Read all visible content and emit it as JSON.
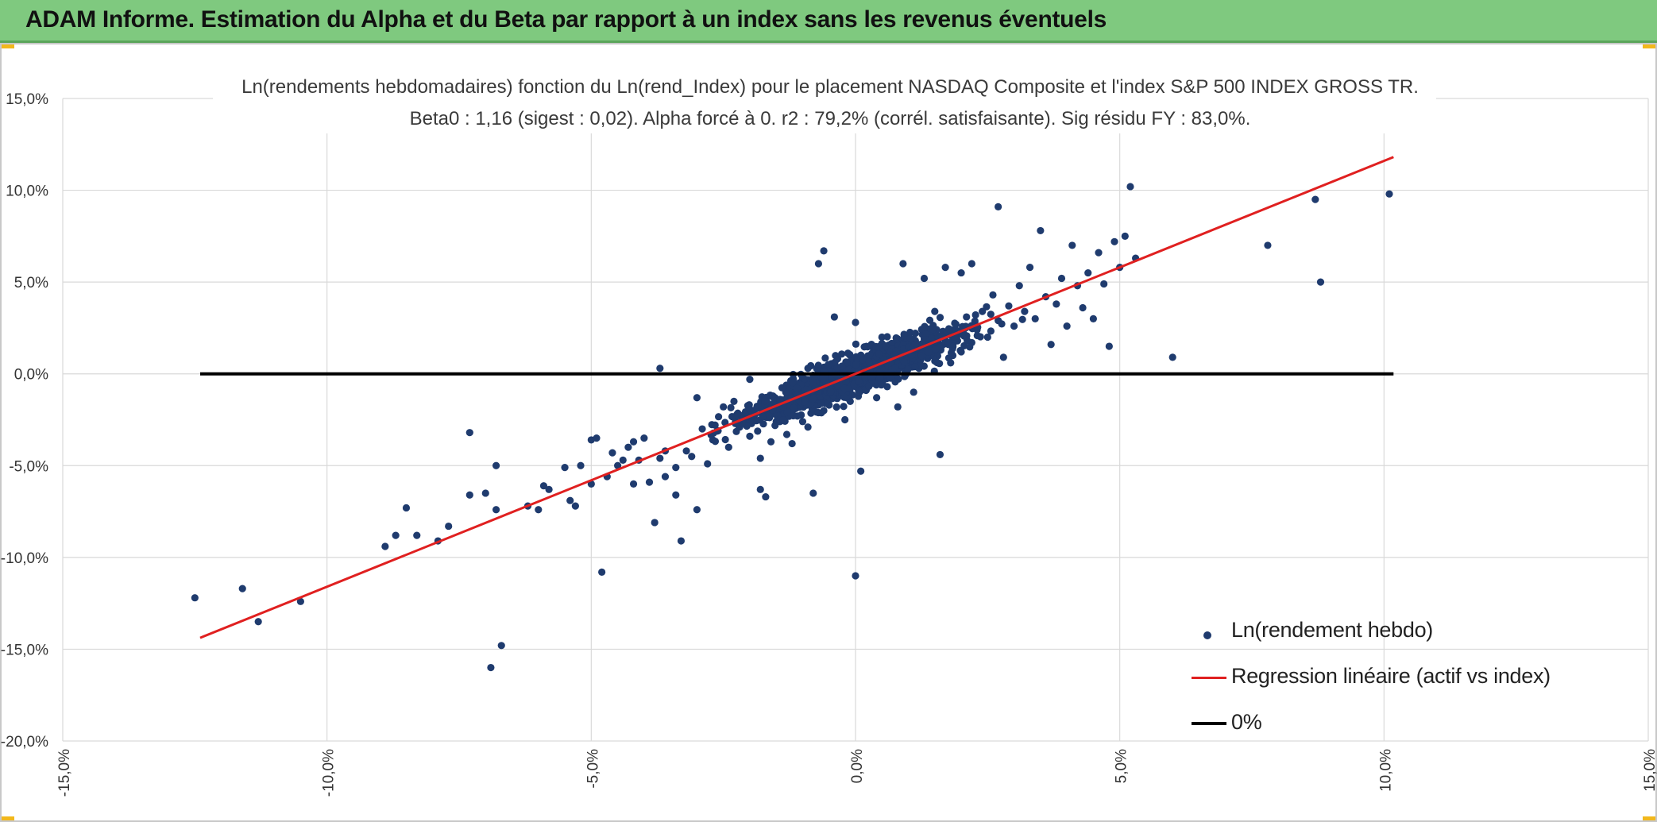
{
  "header": {
    "title": "ADAM Informe. Estimation du Alpha et du Beta par rapport à un index sans les revenus éventuels"
  },
  "colors": {
    "header_bg": "#7fc97f",
    "points": "#1f3b6e",
    "regression": "#e02020",
    "zero_line": "#000000",
    "grid": "#d9d9d9"
  },
  "chart_data": {
    "type": "scatter",
    "title_line1": "Ln(rendements hebdomadaires) fonction du Ln(rend_Index) pour le placement NASDAQ Composite et l'index S&P 500 INDEX GROSS TR.",
    "title_line2": "Beta0 : 1,16 (sigest : 0,02). Alpha forcé à 0. r2 : 79,2% (corrél. satisfaisante). Sig résidu FY : 83,0%.",
    "xlim": [
      -0.15,
      0.15
    ],
    "ylim": [
      -0.2,
      0.15
    ],
    "x_ticks": [
      -0.15,
      -0.1,
      -0.05,
      0.0,
      0.05,
      0.1,
      0.15
    ],
    "x_tick_labels": [
      "-15,0%",
      "-10,0%",
      "-5,0%",
      "0,0%",
      "5,0%",
      "10,0%",
      "15,0%"
    ],
    "y_ticks": [
      -0.2,
      -0.15,
      -0.1,
      -0.05,
      0.0,
      0.05,
      0.1,
      0.15
    ],
    "y_tick_labels": [
      "-20,0%",
      "-15,0%",
      "-10,0%",
      "-5,0%",
      "0,0%",
      "5,0%",
      "10,0%",
      "15,0%"
    ],
    "grid": true,
    "legend_position": "bottom-right",
    "beta": 1.16,
    "series": [
      {
        "name": "Ln(rendement hebdo)",
        "kind": "scatter",
        "points": [
          [
            -0.125,
            -0.122
          ],
          [
            -0.116,
            -0.117
          ],
          [
            -0.113,
            -0.135
          ],
          [
            -0.105,
            -0.124
          ],
          [
            -0.089,
            -0.094
          ],
          [
            -0.087,
            -0.088
          ],
          [
            -0.085,
            -0.073
          ],
          [
            -0.083,
            -0.088
          ],
          [
            -0.079,
            -0.091
          ],
          [
            -0.077,
            -0.083
          ],
          [
            -0.073,
            -0.066
          ],
          [
            -0.073,
            -0.032
          ],
          [
            -0.07,
            -0.065
          ],
          [
            -0.068,
            -0.074
          ],
          [
            -0.068,
            -0.05
          ],
          [
            -0.069,
            -0.16
          ],
          [
            -0.067,
            -0.148
          ],
          [
            -0.062,
            -0.072
          ],
          [
            -0.06,
            -0.074
          ],
          [
            -0.059,
            -0.061
          ],
          [
            -0.058,
            -0.063
          ],
          [
            -0.055,
            -0.051
          ],
          [
            -0.054,
            -0.069
          ],
          [
            -0.053,
            -0.072
          ],
          [
            -0.052,
            -0.05
          ],
          [
            -0.05,
            -0.06
          ],
          [
            -0.05,
            -0.036
          ],
          [
            -0.049,
            -0.035
          ],
          [
            -0.048,
            -0.108
          ],
          [
            -0.047,
            -0.056
          ],
          [
            -0.046,
            -0.043
          ],
          [
            -0.045,
            -0.05
          ],
          [
            -0.044,
            -0.047
          ],
          [
            -0.043,
            -0.04
          ],
          [
            -0.042,
            -0.06
          ],
          [
            -0.042,
            -0.037
          ],
          [
            -0.041,
            -0.047
          ],
          [
            -0.04,
            -0.035
          ],
          [
            -0.039,
            -0.059
          ],
          [
            -0.038,
            -0.081
          ],
          [
            -0.037,
            -0.046
          ],
          [
            -0.037,
            0.003
          ],
          [
            -0.036,
            -0.042
          ],
          [
            -0.036,
            -0.056
          ],
          [
            -0.034,
            -0.051
          ],
          [
            -0.034,
            -0.066
          ],
          [
            -0.033,
            -0.091
          ],
          [
            -0.032,
            -0.042
          ],
          [
            -0.031,
            -0.045
          ],
          [
            -0.03,
            -0.074
          ],
          [
            -0.03,
            -0.013
          ],
          [
            -0.029,
            -0.03
          ],
          [
            -0.028,
            -0.049
          ],
          [
            -0.027,
            -0.036
          ],
          [
            -0.026,
            -0.031
          ],
          [
            -0.025,
            -0.018
          ],
          [
            -0.024,
            -0.04
          ],
          [
            -0.023,
            -0.015
          ],
          [
            -0.022,
            -0.029
          ],
          [
            -0.021,
            -0.026
          ],
          [
            -0.02,
            -0.034
          ],
          [
            -0.02,
            -0.003
          ],
          [
            -0.019,
            -0.022
          ],
          [
            -0.018,
            -0.046
          ],
          [
            -0.018,
            -0.063
          ],
          [
            -0.017,
            -0.067
          ],
          [
            -0.016,
            -0.012
          ],
          [
            -0.016,
            -0.037
          ],
          [
            -0.015,
            -0.026
          ],
          [
            -0.014,
            -0.019
          ],
          [
            -0.013,
            -0.033
          ],
          [
            -0.012,
            -0.01
          ],
          [
            -0.012,
            -0.038
          ],
          [
            -0.011,
            -0.023
          ],
          [
            -0.01,
            -0.015
          ],
          [
            -0.01,
            -0.026
          ],
          [
            -0.009,
            0.003
          ],
          [
            -0.009,
            -0.029
          ],
          [
            -0.008,
            -0.011
          ],
          [
            -0.008,
            -0.065
          ],
          [
            -0.007,
            0.06
          ],
          [
            -0.006,
            0.067
          ],
          [
            -0.006,
            -0.02
          ],
          [
            -0.005,
            -0.004
          ],
          [
            -0.005,
            -0.017
          ],
          [
            -0.004,
            -0.008
          ],
          [
            -0.004,
            0.031
          ],
          [
            -0.003,
            -0.012
          ],
          [
            -0.003,
            0.002
          ],
          [
            -0.002,
            -0.025
          ],
          [
            -0.002,
            -0.006
          ],
          [
            -0.001,
            0.004
          ],
          [
            -0.001,
            -0.015
          ],
          [
            0.0,
            -0.002
          ],
          [
            0.0,
            0.028
          ],
          [
            0.0,
            -0.11
          ],
          [
            0.001,
            -0.053
          ],
          [
            0.001,
            0.009
          ],
          [
            0.002,
            -0.009
          ],
          [
            0.003,
            0.005
          ],
          [
            0.003,
            -0.003
          ],
          [
            0.004,
            0.014
          ],
          [
            0.004,
            -0.013
          ],
          [
            0.005,
            0.001
          ],
          [
            0.005,
            0.02
          ],
          [
            0.006,
            0.004
          ],
          [
            0.006,
            -0.007
          ],
          [
            0.007,
            0.011
          ],
          [
            0.008,
            0.002
          ],
          [
            0.008,
            -0.018
          ],
          [
            0.009,
            0.015
          ],
          [
            0.009,
            0.06
          ],
          [
            0.01,
            0.006
          ],
          [
            0.011,
            -0.01
          ],
          [
            0.011,
            0.019
          ],
          [
            0.012,
            0.003
          ],
          [
            0.013,
            0.012
          ],
          [
            0.013,
            0.052
          ],
          [
            0.014,
            0.022
          ],
          [
            0.015,
            0.007
          ],
          [
            0.015,
            0.034
          ],
          [
            0.016,
            0.015
          ],
          [
            0.016,
            -0.044
          ],
          [
            0.017,
            0.058
          ],
          [
            0.018,
            0.021
          ],
          [
            0.018,
            0.006
          ],
          [
            0.019,
            0.027
          ],
          [
            0.02,
            0.012
          ],
          [
            0.02,
            0.055
          ],
          [
            0.021,
            0.031
          ],
          [
            0.022,
            0.017
          ],
          [
            0.022,
            0.06
          ],
          [
            0.023,
            0.024
          ],
          [
            0.024,
            0.034
          ],
          [
            0.025,
            0.02
          ],
          [
            0.026,
            0.043
          ],
          [
            0.027,
            0.029
          ],
          [
            0.027,
            0.091
          ],
          [
            0.028,
            0.009
          ],
          [
            0.029,
            0.037
          ],
          [
            0.03,
            0.026
          ],
          [
            0.031,
            0.048
          ],
          [
            0.032,
            0.034
          ],
          [
            0.033,
            0.058
          ],
          [
            0.034,
            0.03
          ],
          [
            0.035,
            0.078
          ],
          [
            0.036,
            0.042
          ],
          [
            0.037,
            0.016
          ],
          [
            0.038,
            0.038
          ],
          [
            0.039,
            0.052
          ],
          [
            0.04,
            0.026
          ],
          [
            0.041,
            0.07
          ],
          [
            0.042,
            0.048
          ],
          [
            0.043,
            0.036
          ],
          [
            0.044,
            0.055
          ],
          [
            0.045,
            0.03
          ],
          [
            0.046,
            0.066
          ],
          [
            0.047,
            0.049
          ],
          [
            0.048,
            0.015
          ],
          [
            0.049,
            0.072
          ],
          [
            0.05,
            0.058
          ],
          [
            0.051,
            0.075
          ],
          [
            0.052,
            0.102
          ],
          [
            0.053,
            0.063
          ],
          [
            0.06,
            0.009
          ],
          [
            0.078,
            0.07
          ],
          [
            0.087,
            0.095
          ],
          [
            0.088,
            0.05
          ],
          [
            0.101,
            0.098
          ]
        ]
      },
      {
        "name": "Regression linéaire (actif vs index)",
        "kind": "line",
        "points": [
          [
            -0.124,
            -0.1438
          ],
          [
            0.1018,
            0.1181
          ]
        ]
      },
      {
        "name": "0%",
        "kind": "line",
        "points": [
          [
            -0.124,
            0.0
          ],
          [
            0.1018,
            0.0
          ]
        ]
      }
    ]
  }
}
